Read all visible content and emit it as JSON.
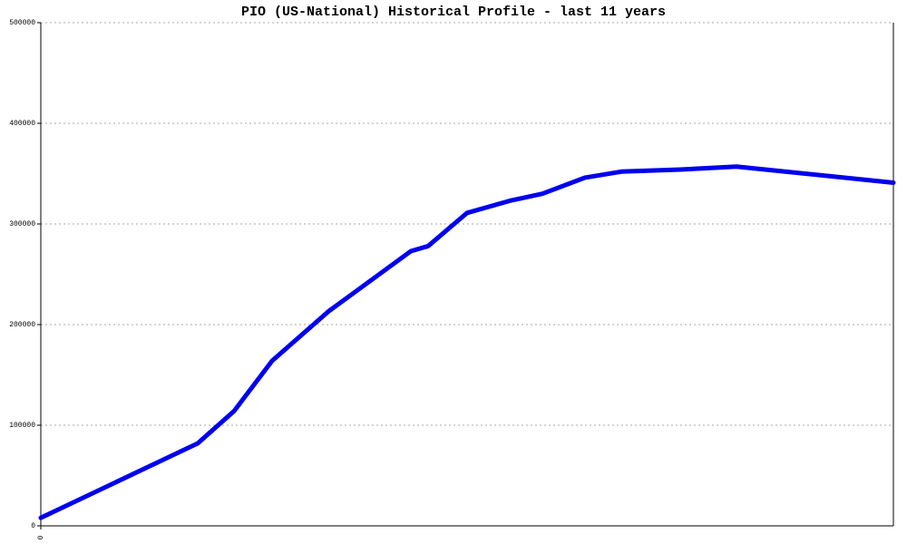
{
  "chart_data": {
    "type": "line",
    "title": "PIO (US-National) Historical Profile - last 11 years",
    "x": [
      0,
      173,
      213,
      255,
      317,
      408,
      427,
      470,
      517,
      553,
      600,
      640,
      705,
      767,
      940
    ],
    "series": [
      {
        "color": "#0000ee",
        "values": [
          8000,
          82000,
          114000,
          164000,
          213000,
          273000,
          278000,
          311000,
          323000,
          330000,
          346000,
          352000,
          354000,
          357000,
          341000
        ]
      }
    ],
    "xlim": [
      0,
      940
    ],
    "xticks": [
      0
    ],
    "ylim": [
      0,
      500000
    ],
    "yticks": [
      0,
      100000,
      200000,
      300000,
      400000,
      500000
    ],
    "grid": true
  }
}
